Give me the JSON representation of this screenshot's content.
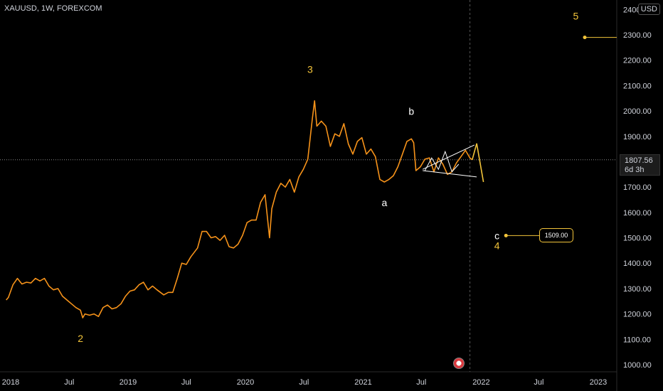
{
  "header": {
    "symbol": "XAUUSD, 1W, FOREXCOM",
    "currency": "USD"
  },
  "price_tag": {
    "price": "1807.56",
    "countdown": "6d 3h"
  },
  "target_label": "1509.00",
  "colors": {
    "price_line": "#f7931a",
    "wave_label": "#f3c43a",
    "projection": "#f3c43a",
    "triangle": "#ffffff",
    "background": "#000000"
  },
  "chart_data": {
    "type": "line",
    "title": "",
    "xlabel": "",
    "ylabel": "",
    "ylim": [
      960,
      2380
    ],
    "xlim": [
      "2018-01-01",
      "2023-01-16"
    ],
    "x_ticks": [
      "2018",
      "Jul",
      "2019",
      "Jul",
      "2020",
      "Jul",
      "2021",
      "Jul",
      "2022",
      "Jul",
      "2023"
    ],
    "y_ticks": [
      "1000.00",
      "1100.00",
      "1200.00",
      "1300.00",
      "1400.00",
      "1500.00",
      "1600.00",
      "1700.00",
      "1800.00",
      "1900.00",
      "2000.00",
      "2100.00",
      "2200.00",
      "2300.00",
      "2400.00"
    ],
    "last_price": 1807.56,
    "series": [
      {
        "values": [
          [
            "2017-12-18",
            1255
          ],
          [
            "2017-12-25",
            1265
          ],
          [
            "2018-01-08",
            1315
          ],
          [
            "2018-01-22",
            1340
          ],
          [
            "2018-02-05",
            1318
          ],
          [
            "2018-02-19",
            1325
          ],
          [
            "2018-03-05",
            1322
          ],
          [
            "2018-03-19",
            1340
          ],
          [
            "2018-04-02",
            1330
          ],
          [
            "2018-04-16",
            1340
          ],
          [
            "2018-04-30",
            1310
          ],
          [
            "2018-05-14",
            1295
          ],
          [
            "2018-05-28",
            1300
          ],
          [
            "2018-06-11",
            1270
          ],
          [
            "2018-06-25",
            1255
          ],
          [
            "2018-07-09",
            1240
          ],
          [
            "2018-07-23",
            1225
          ],
          [
            "2018-08-06",
            1215
          ],
          [
            "2018-08-13",
            1185
          ],
          [
            "2018-08-20",
            1200
          ],
          [
            "2018-09-03",
            1195
          ],
          [
            "2018-09-17",
            1200
          ],
          [
            "2018-10-01",
            1190
          ],
          [
            "2018-10-15",
            1225
          ],
          [
            "2018-10-29",
            1235
          ],
          [
            "2018-11-12",
            1220
          ],
          [
            "2018-11-26",
            1225
          ],
          [
            "2018-12-10",
            1240
          ],
          [
            "2018-12-24",
            1270
          ],
          [
            "2019-01-07",
            1290
          ],
          [
            "2019-01-21",
            1295
          ],
          [
            "2019-02-04",
            1315
          ],
          [
            "2019-02-18",
            1325
          ],
          [
            "2019-03-04",
            1295
          ],
          [
            "2019-03-18",
            1310
          ],
          [
            "2019-04-01",
            1295
          ],
          [
            "2019-04-22",
            1275
          ],
          [
            "2019-05-06",
            1285
          ],
          [
            "2019-05-20",
            1285
          ],
          [
            "2019-06-03",
            1340
          ],
          [
            "2019-06-17",
            1400
          ],
          [
            "2019-07-01",
            1395
          ],
          [
            "2019-07-15",
            1425
          ],
          [
            "2019-08-05",
            1460
          ],
          [
            "2019-08-19",
            1525
          ],
          [
            "2019-09-02",
            1525
          ],
          [
            "2019-09-16",
            1500
          ],
          [
            "2019-09-30",
            1505
          ],
          [
            "2019-10-14",
            1490
          ],
          [
            "2019-10-28",
            1510
          ],
          [
            "2019-11-11",
            1465
          ],
          [
            "2019-11-25",
            1460
          ],
          [
            "2019-12-09",
            1475
          ],
          [
            "2019-12-23",
            1510
          ],
          [
            "2020-01-06",
            1560
          ],
          [
            "2020-01-20",
            1570
          ],
          [
            "2020-02-03",
            1570
          ],
          [
            "2020-02-17",
            1640
          ],
          [
            "2020-03-02",
            1670
          ],
          [
            "2020-03-16",
            1500
          ],
          [
            "2020-03-23",
            1615
          ],
          [
            "2020-04-06",
            1680
          ],
          [
            "2020-04-20",
            1715
          ],
          [
            "2020-05-04",
            1700
          ],
          [
            "2020-05-18",
            1730
          ],
          [
            "2020-06-01",
            1680
          ],
          [
            "2020-06-15",
            1740
          ],
          [
            "2020-06-29",
            1770
          ],
          [
            "2020-07-13",
            1810
          ],
          [
            "2020-07-27",
            1970
          ],
          [
            "2020-08-03",
            2040
          ],
          [
            "2020-08-10",
            1940
          ],
          [
            "2020-08-24",
            1960
          ],
          [
            "2020-09-07",
            1940
          ],
          [
            "2020-09-21",
            1860
          ],
          [
            "2020-10-05",
            1910
          ],
          [
            "2020-10-19",
            1900
          ],
          [
            "2020-11-02",
            1950
          ],
          [
            "2020-11-16",
            1870
          ],
          [
            "2020-11-30",
            1830
          ],
          [
            "2020-12-14",
            1880
          ],
          [
            "2020-12-28",
            1895
          ],
          [
            "2021-01-11",
            1830
          ],
          [
            "2021-01-25",
            1850
          ],
          [
            "2021-02-08",
            1820
          ],
          [
            "2021-02-22",
            1730
          ],
          [
            "2021-03-08",
            1720
          ],
          [
            "2021-03-22",
            1730
          ],
          [
            "2021-04-05",
            1745
          ],
          [
            "2021-04-19",
            1780
          ],
          [
            "2021-05-03",
            1830
          ],
          [
            "2021-05-17",
            1880
          ],
          [
            "2021-05-31",
            1890
          ],
          [
            "2021-06-07",
            1875
          ],
          [
            "2021-06-14",
            1765
          ],
          [
            "2021-06-28",
            1780
          ],
          [
            "2021-07-12",
            1810
          ],
          [
            "2021-07-26",
            1815
          ],
          [
            "2021-08-09",
            1760
          ],
          [
            "2021-08-23",
            1815
          ],
          [
            "2021-09-06",
            1790
          ],
          [
            "2021-09-20",
            1750
          ],
          [
            "2021-10-04",
            1760
          ],
          [
            "2021-10-18",
            1795
          ],
          [
            "2021-11-01",
            1820
          ],
          [
            "2021-11-15",
            1845
          ],
          [
            "2021-11-29",
            1815
          ],
          [
            "2021-12-06",
            1807.56
          ]
        ]
      }
    ],
    "projection_path": [
      [
        "2021-12-06",
        1807.56
      ],
      [
        "2021-12-20",
        1872
      ],
      [
        "2022-01-10",
        1720
      ]
    ],
    "triangle_upper": [
      [
        "2021-07-05",
        1770
      ],
      [
        "2021-12-13",
        1866
      ]
    ],
    "triangle_lower": [
      [
        "2021-07-05",
        1765
      ],
      [
        "2021-12-20",
        1740
      ]
    ],
    "inner_waves": [
      [
        "2021-07-12",
        1765
      ],
      [
        "2021-08-02",
        1815
      ],
      [
        "2021-08-23",
        1770
      ],
      [
        "2021-09-13",
        1840
      ],
      [
        "2021-10-04",
        1760
      ],
      [
        "2021-10-25",
        1790
      ]
    ],
    "current_time": "2021-11-29",
    "target_price": {
      "value": 1509.0,
      "from": "2022-03-21",
      "to": "2022-07-25"
    },
    "wave5_price": {
      "value": 2290,
      "from": "2022-11-21",
      "to": "2023-01-16"
    },
    "wave_labels": [
      {
        "text": "2",
        "x": "2018-08-06",
        "y": 1090,
        "color": "#f3c43a"
      },
      {
        "text": "3",
        "x": "2020-07-20",
        "y": 2150,
        "color": "#f3c43a"
      },
      {
        "text": "a",
        "x": "2021-03-08",
        "y": 1625,
        "color": "#ffffff"
      },
      {
        "text": "b",
        "x": "2021-05-31",
        "y": 1985,
        "color": "#ffffff"
      },
      {
        "text": "c",
        "x": "2022-02-21",
        "y": 1495,
        "color": "#ffffff"
      },
      {
        "text": "4",
        "x": "2022-02-21",
        "y": 1455,
        "color": "#f3c43a"
      },
      {
        "text": "5",
        "x": "2022-10-24",
        "y": 2360,
        "color": "#f3c43a"
      }
    ]
  }
}
